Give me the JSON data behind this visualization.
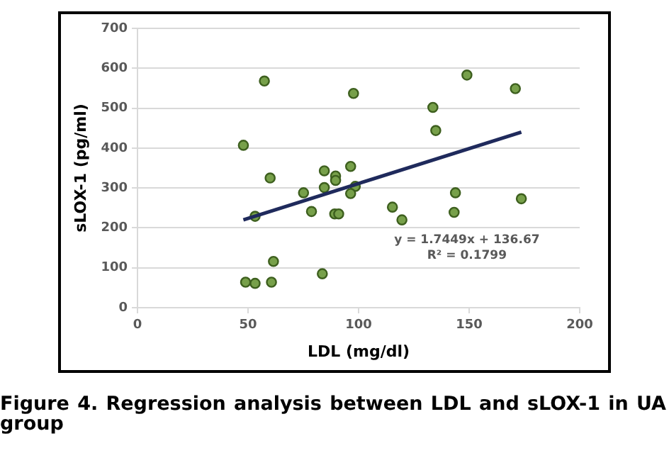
{
  "chart_data": {
    "type": "scatter",
    "xlabel": "LDL (mg/dl)",
    "ylabel": "sLOX-1 (pg/ml)",
    "annotations": [
      "y = 1.7449x + 136.67",
      "R² = 0.1799",
      "Figure 4. Regression analysis between LDL and sLOX-1 in UA group"
    ],
    "xlim": [
      0,
      200
    ],
    "xticks": [
      0,
      50,
      100,
      150,
      200
    ],
    "ylim": [
      0,
      700
    ],
    "yticks": [
      0,
      100,
      200,
      300,
      400,
      500,
      600,
      700
    ],
    "grid": "y",
    "legend": false,
    "marker": "circle",
    "series": [
      {
        "color": "#77a04a",
        "x": [
          57.4,
          47.9,
          60,
          53.2,
          75.1,
          78.7,
          84.5,
          84.5,
          89.6,
          89.6,
          89.2,
          91,
          61.5,
          48.9,
          53.2,
          60.6,
          83.6,
          97.7,
          149,
          170.9,
          133.6,
          134.9,
          96.4,
          98.5,
          96.4,
          143.8,
          115.3,
          119.6,
          143.2,
          173.6
        ],
        "values": [
          568,
          407,
          325,
          229,
          288,
          241,
          343,
          301,
          330,
          319,
          235,
          235,
          116,
          64,
          61,
          64,
          85,
          537,
          583,
          549,
          502,
          444,
          354,
          304,
          286,
          288,
          252,
          220,
          239,
          273
        ]
      },
      {
        "type": "line",
        "color": "#1f2a5c",
        "marker": "none",
        "x": [
          47.9,
          173.6
        ],
        "values": [
          220,
          440
        ]
      }
    ]
  }
}
